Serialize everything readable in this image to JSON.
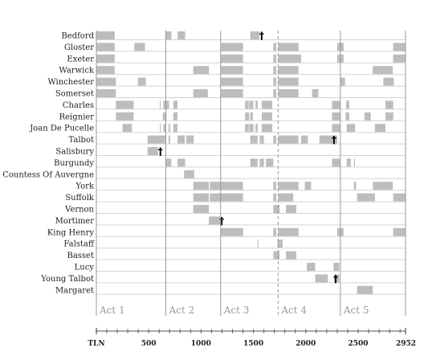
{
  "chart_data": {
    "type": "timeline",
    "title": "",
    "xlabel": "",
    "ylabel": "",
    "xlim": [
      1,
      2952
    ],
    "grid": true,
    "colors": {
      "bar": "#bdbdbd",
      "rule": "#9a9a9a",
      "text": "#222222"
    },
    "axis": {
      "ticks": [
        {
          "value": 1,
          "label": "TLN"
        },
        {
          "value": 500,
          "label": "500"
        },
        {
          "value": 1000,
          "label": "1000"
        },
        {
          "value": 1500,
          "label": "1500"
        },
        {
          "value": 2000,
          "label": "2000"
        },
        {
          "value": 2500,
          "label": "2500"
        },
        {
          "value": 2952,
          "label": "2952"
        }
      ],
      "minor_step": 100
    },
    "acts": [
      {
        "label": "Act 1",
        "start": 1,
        "end": 664,
        "dashed": false
      },
      {
        "label": "Act 2",
        "start": 664,
        "end": 1187,
        "dashed": false
      },
      {
        "label": "Act 3",
        "start": 1187,
        "end": 1736,
        "dashed": false
      },
      {
        "label": "Act 4",
        "start": 1736,
        "end": 2330,
        "dashed": true
      },
      {
        "label": "Act 5",
        "start": 2330,
        "end": 2952,
        "dashed": false
      }
    ],
    "characters": [
      {
        "name": "Bedford",
        "spans": [
          [
            1,
            176
          ],
          [
            668,
            717
          ],
          [
            777,
            848
          ],
          [
            1470,
            1558
          ]
        ],
        "death": 1579
      },
      {
        "name": "Gloster",
        "spans": [
          [
            1,
            176
          ],
          [
            364,
            465
          ],
          [
            1190,
            1401
          ],
          [
            1690,
            1718
          ],
          [
            1736,
            1930
          ],
          [
            2300,
            2361
          ],
          [
            2834,
            2952
          ]
        ]
      },
      {
        "name": "Exeter",
        "spans": [
          [
            1,
            176
          ],
          [
            1190,
            1401
          ],
          [
            1690,
            1718
          ],
          [
            1736,
            1955
          ],
          [
            2300,
            2361
          ],
          [
            2834,
            2952
          ]
        ]
      },
      {
        "name": "Warwick",
        "spans": [
          [
            1,
            176
          ],
          [
            926,
            1075
          ],
          [
            1190,
            1401
          ],
          [
            1690,
            1718
          ],
          [
            1736,
            1930
          ],
          [
            2640,
            2830
          ]
        ]
      },
      {
        "name": "Winchester",
        "spans": [
          [
            1,
            187
          ],
          [
            397,
            473
          ],
          [
            1190,
            1401
          ],
          [
            1690,
            1718
          ],
          [
            1736,
            1930
          ],
          [
            2330,
            2375
          ],
          [
            2740,
            2840
          ]
        ]
      },
      {
        "name": "Somerset",
        "spans": [
          [
            1,
            187
          ],
          [
            926,
            1065
          ],
          [
            1190,
            1401
          ],
          [
            1690,
            1718
          ],
          [
            1736,
            1930
          ],
          [
            2060,
            2120
          ]
        ]
      },
      {
        "name": "Charles",
        "spans": [
          [
            187,
            357
          ],
          [
            607,
            615
          ],
          [
            640,
            695
          ],
          [
            735,
            775
          ],
          [
            1420,
            1455
          ],
          [
            1460,
            1500
          ],
          [
            1520,
            1540
          ],
          [
            1580,
            1680
          ],
          [
            2250,
            2330
          ],
          [
            2385,
            2415
          ],
          [
            2760,
            2835
          ]
        ]
      },
      {
        "name": "Reignier",
        "spans": [
          [
            187,
            357
          ],
          [
            635,
            670
          ],
          [
            735,
            775
          ],
          [
            1420,
            1460
          ],
          [
            1470,
            1495
          ],
          [
            1580,
            1680
          ],
          [
            2250,
            2330
          ],
          [
            2380,
            2415
          ],
          [
            2560,
            2620
          ],
          [
            2760,
            2835
          ]
        ]
      },
      {
        "name": "Joan De Pucelle",
        "spans": [
          [
            250,
            340
          ],
          [
            607,
            615
          ],
          [
            640,
            665
          ],
          [
            690,
            705
          ],
          [
            735,
            775
          ],
          [
            1420,
            1455
          ],
          [
            1460,
            1500
          ],
          [
            1520,
            1540
          ],
          [
            1580,
            1680
          ],
          [
            2250,
            2330
          ],
          [
            2390,
            2470
          ],
          [
            2660,
            2760
          ]
        ]
      },
      {
        "name": "Talbot",
        "spans": [
          [
            490,
            660
          ],
          [
            690,
            705
          ],
          [
            776,
            845
          ],
          [
            860,
            930
          ],
          [
            1470,
            1540
          ],
          [
            1560,
            1600
          ],
          [
            1690,
            1718
          ],
          [
            1736,
            1930
          ],
          [
            1955,
            2020
          ],
          [
            2130,
            2300
          ]
        ],
        "death": 2270
      },
      {
        "name": "Salisbury",
        "spans": [
          [
            490,
            590
          ]
        ],
        "death": 612
      },
      {
        "name": "Burgundy",
        "spans": [
          [
            668,
            717
          ],
          [
            776,
            848
          ],
          [
            1470,
            1540
          ],
          [
            1560,
            1600
          ],
          [
            1620,
            1690
          ],
          [
            2250,
            2330
          ],
          [
            2390,
            2430
          ],
          [
            2460,
            2470
          ]
        ]
      },
      {
        "name": "Countess Of Auvergne",
        "spans": [
          [
            838,
            935
          ]
        ]
      },
      {
        "name": "York",
        "spans": [
          [
            926,
            1075
          ],
          [
            1085,
            1401
          ],
          [
            1690,
            1718
          ],
          [
            1736,
            1930
          ],
          [
            1990,
            2050
          ],
          [
            2460,
            2480
          ],
          [
            2640,
            2830
          ]
        ]
      },
      {
        "name": "Suffolk",
        "spans": [
          [
            926,
            1075
          ],
          [
            1085,
            1401
          ],
          [
            1690,
            1718
          ],
          [
            1736,
            1880
          ],
          [
            2490,
            2660
          ],
          [
            2834,
            2952
          ]
        ]
      },
      {
        "name": "Vernon",
        "spans": [
          [
            926,
            1075
          ],
          [
            1690,
            1750
          ],
          [
            1810,
            1910
          ]
        ]
      },
      {
        "name": "Mortimer",
        "spans": [
          [
            1075,
            1187
          ]
        ],
        "death": 1198
      },
      {
        "name": "King Henry",
        "spans": [
          [
            1190,
            1401
          ],
          [
            1690,
            1718
          ],
          [
            1736,
            1930
          ],
          [
            2300,
            2361
          ],
          [
            2834,
            2952
          ]
        ]
      },
      {
        "name": "Falstaff",
        "spans": [
          [
            1540,
            1546
          ],
          [
            1730,
            1780
          ]
        ]
      },
      {
        "name": "Basset",
        "spans": [
          [
            1690,
            1750
          ],
          [
            1810,
            1910
          ]
        ]
      },
      {
        "name": "Lucy",
        "spans": [
          [
            2010,
            2090
          ],
          [
            2265,
            2320
          ]
        ]
      },
      {
        "name": "Young Talbot",
        "spans": [
          [
            2090,
            2210
          ],
          [
            2270,
            2320
          ]
        ],
        "death": 2285
      },
      {
        "name": "Margaret",
        "spans": [
          [
            2490,
            2640
          ]
        ]
      }
    ]
  }
}
